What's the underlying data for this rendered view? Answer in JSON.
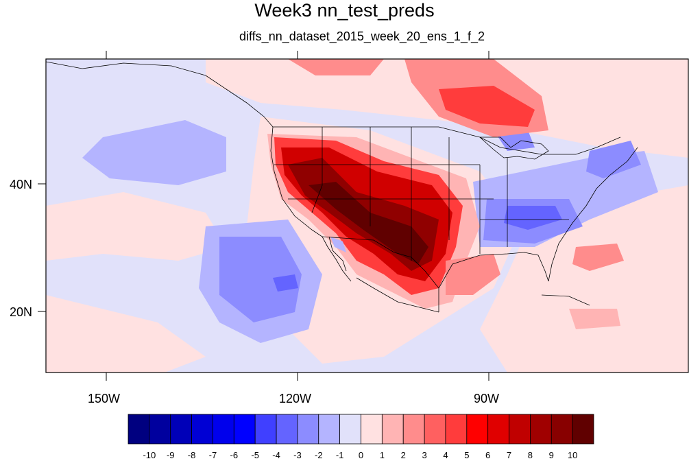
{
  "title": "Week3 nn_test_preds",
  "subtitle": "diffs_nn_dataset_2015_week_20_ens_1_f_2",
  "axes": {
    "lon_labels": [
      "150W",
      "120W",
      "90W"
    ],
    "lat_labels": [
      "40N",
      "20N"
    ]
  },
  "colorbar": {
    "labels": [
      "-10",
      "-9",
      "-8",
      "-7",
      "-6",
      "-5",
      "-4",
      "-3",
      "-2",
      "-1",
      "0",
      "1",
      "2",
      "3",
      "4",
      "5",
      "6",
      "7",
      "8",
      "9",
      "10"
    ],
    "colors": [
      "#000080",
      "#00009e",
      "#0000b8",
      "#0000d4",
      "#0000ec",
      "#0000ff",
      "#4040ff",
      "#6464ff",
      "#8c8cff",
      "#b4b4ff",
      "#e1e1fa",
      "#ffe1e1",
      "#ffb4b4",
      "#ff8c8c",
      "#ff6060",
      "#ff3c3c",
      "#ff0000",
      "#e00000",
      "#c00000",
      "#a00000",
      "#880000",
      "#600000"
    ]
  },
  "map_colors": {
    "ocean_base": "#e1e1fa",
    "light_blue": "#b4b4ff",
    "mid_blue": "#8c8cff",
    "blue": "#6464ff",
    "light_red": "#ffe1e1",
    "pink": "#ffb4b4",
    "salmon": "#ff8c8c",
    "red": "#ff3c3c",
    "deep_red": "#d00000",
    "dark_red": "#900000",
    "maroon": "#600000"
  }
}
